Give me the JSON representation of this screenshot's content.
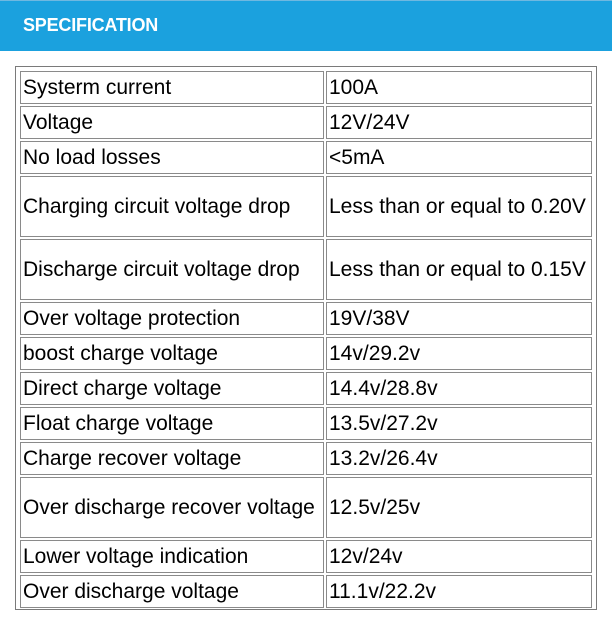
{
  "header": {
    "title": "SPECIFICATION"
  },
  "spec_table": {
    "rows": [
      {
        "name": "Systerm current",
        "value": "100A"
      },
      {
        "name": "Voltage",
        "value": "12V/24V"
      },
      {
        "name": "No load losses",
        "value": "<5mA"
      },
      {
        "name": "Charging circuit voltage drop",
        "value": "Less than or equal to 0.20V"
      },
      {
        "name": "Discharge circuit voltage drop",
        "value": "Less than or equal to 0.15V"
      },
      {
        "name": "Over voltage protection",
        "value": "19V/38V"
      },
      {
        "name": "boost charge voltage",
        "value": "14v/29.2v"
      },
      {
        "name": "Direct charge voltage",
        "value": "14.4v/28.8v"
      },
      {
        "name": "Float charge voltage",
        "value": "13.5v/27.2v"
      },
      {
        "name": "Charge recover voltage",
        "value": "13.2v/26.4v"
      },
      {
        "name": "Over discharge recover voltage",
        "value": "12.5v/25v"
      },
      {
        "name": "Lower voltage indication",
        "value": "12v/24v"
      },
      {
        "name": "Over discharge voltage",
        "value": "11.1v/22.2v"
      }
    ]
  },
  "colors": {
    "header_bg": "#1ba1de",
    "header_text": "#ffffff",
    "border": "#8a8a8a"
  }
}
